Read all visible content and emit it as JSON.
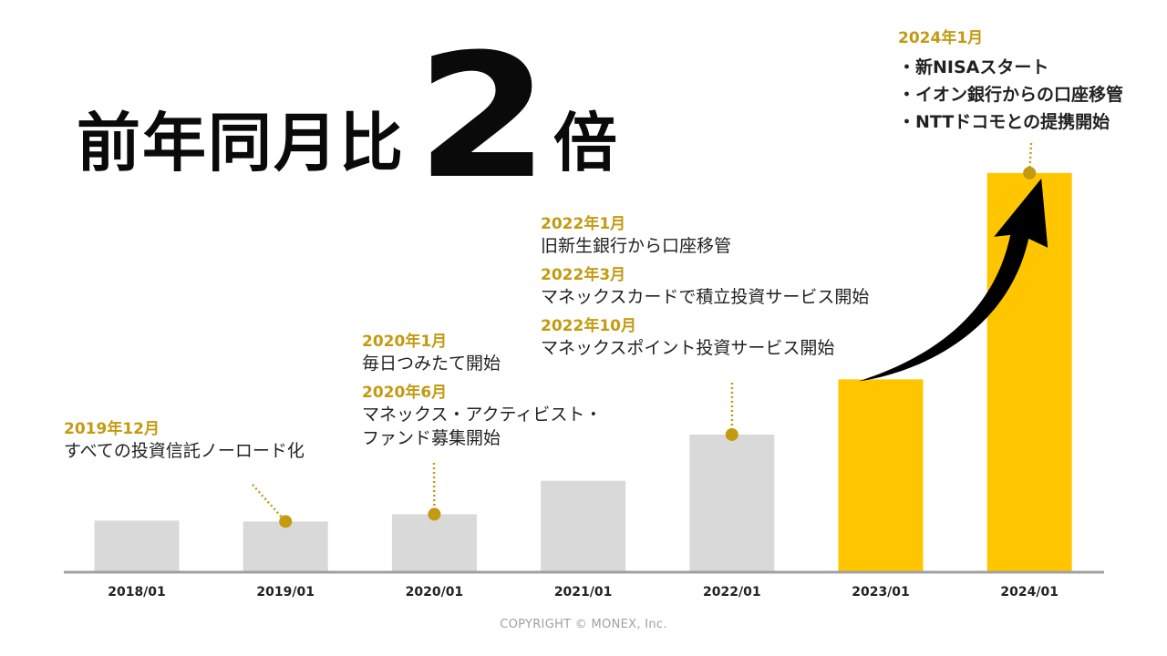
{
  "headline": {
    "prefix": "前年同月比",
    "number": "2",
    "suffix": "倍"
  },
  "chart_data": {
    "type": "bar",
    "categories": [
      "2018/01",
      "2019/01",
      "2020/01",
      "2021/01",
      "2022/01",
      "2023/01",
      "2024/01"
    ],
    "values": [
      56,
      55,
      63,
      100,
      151,
      212,
      440
    ],
    "ylim": [
      0,
      460
    ],
    "grid": false,
    "colors": {
      "bar_default": "#d9d9d9",
      "bar_highlight": "#ffc600",
      "highlight_categories": [
        "2023/01",
        "2024/01"
      ],
      "annotation_date": "#c39a10",
      "marker": "#c39a10",
      "axis": "#a0a0a0",
      "arrow": "#000000"
    },
    "annotations": [
      {
        "category": "2019/01",
        "lines": [
          {
            "date": "2019年12月",
            "text": "すべての投資信託ノーロード化"
          }
        ]
      },
      {
        "category": "2020/01",
        "lines": [
          {
            "date": "2020年1月",
            "text": "毎日つみたて開始"
          },
          {
            "date": "2020年6月",
            "text": "マネックス・アクティビスト・\nファンド募集開始"
          }
        ]
      },
      {
        "category": "2022/01",
        "lines": [
          {
            "date": "2022年1月",
            "text": "旧新生銀行から口座移管"
          },
          {
            "date": "2022年3月",
            "text": "マネックスカードで積立投資サービス開始"
          },
          {
            "date": "2022年10月",
            "text": "マネックスポイント投資サービス開始"
          }
        ]
      },
      {
        "category": "2024/01",
        "date": "2024年1月",
        "items": [
          "・新NISAスタート",
          "・イオン銀行からの口座移管",
          "・NTTドコモとの提携開始"
        ]
      }
    ]
  },
  "copyright": "COPYRIGHT © MONEX, Inc."
}
